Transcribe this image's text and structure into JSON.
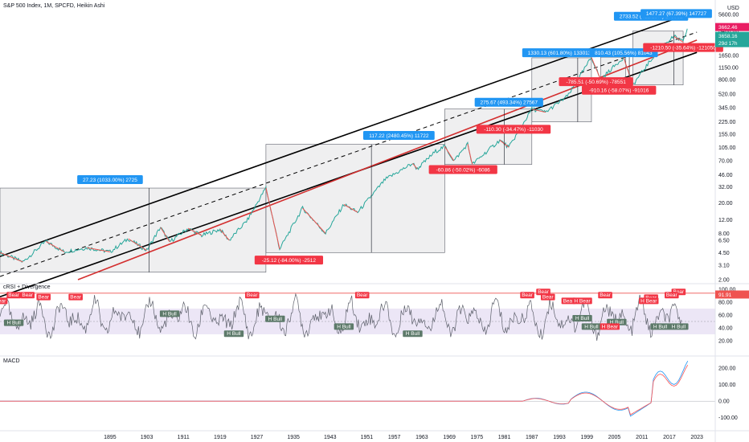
{
  "header": {
    "title": "S&P 500 Index, 1M, SPCFD, Heikin Ashi",
    "currency": "USD"
  },
  "panes": {
    "rsi_title": "cRSI + Divergence",
    "macd_title": "MACD"
  },
  "price_badges": [
    {
      "text": "3662.46",
      "color": "#e91e63"
    },
    {
      "text": "3658.16",
      "color": "#26a69a"
    },
    {
      "text": "29d 17h",
      "color": "#26a69a"
    }
  ],
  "rsi_badge": {
    "text": "91.91",
    "color": "#ef5350"
  },
  "chart_data": {
    "type": "line",
    "price_axis": {
      "scale": "log",
      "ticks": [
        "5600.00",
        "3460.00",
        "2650.00",
        "1650.00",
        "1150.00",
        "800.00",
        "520.00",
        "345.00",
        "225.00",
        "155.00",
        "105.00",
        "70.00",
        "46.00",
        "32.00",
        "20.00",
        "12.00",
        "8.00",
        "6.50",
        "4.50",
        "3.10",
        "2.00"
      ]
    },
    "x_axis": {
      "ticks": [
        "1895",
        "1903",
        "1911",
        "1919",
        "1927",
        "1935",
        "1943",
        "1951",
        "1957",
        "1963",
        "1969",
        "1975",
        "1981",
        "1987",
        "1993",
        "1999",
        "2005",
        "2011",
        "2017",
        "2023"
      ]
    },
    "rsi_axis": {
      "ticks": [
        "100.00",
        "80.00",
        "60.00",
        "40.00",
        "20.00"
      ],
      "range": [
        0,
        100
      ]
    },
    "macd_axis": {
      "ticks": [
        "200.00",
        "100.00",
        "0.00",
        "-100.00"
      ],
      "range": [
        -150,
        230
      ]
    },
    "price_series": [
      [
        1871,
        4.5
      ],
      [
        1876,
        3.4
      ],
      [
        1881,
        6.3
      ],
      [
        1885,
        4.6
      ],
      [
        1890,
        5.2
      ],
      [
        1895,
        4.6
      ],
      [
        1899,
        6.8
      ],
      [
        1903,
        4.8
      ],
      [
        1906,
        9.6
      ],
      [
        1908,
        6.2
      ],
      [
        1912,
        9.3
      ],
      [
        1915,
        7.5
      ],
      [
        1919,
        9.0
      ],
      [
        1921,
        6.5
      ],
      [
        1925,
        12.0
      ],
      [
        1929,
        31.3
      ],
      [
        1932,
        5.0
      ],
      [
        1937,
        17.0
      ],
      [
        1942,
        8.0
      ],
      [
        1946,
        19.0
      ],
      [
        1949,
        15.0
      ],
      [
        1955,
        40.0
      ],
      [
        1961,
        65.0
      ],
      [
        1962,
        55.0
      ],
      [
        1966,
        93.0
      ],
      [
        1968,
        108.0
      ],
      [
        1970,
        70.0
      ],
      [
        1973,
        116.0
      ],
      [
        1974,
        63.0
      ],
      [
        1980,
        130.0
      ],
      [
        1982,
        105.0
      ],
      [
        1987,
        330.0
      ],
      [
        1990,
        300.0
      ],
      [
        1995,
        500.0
      ],
      [
        2000,
        1550.0
      ],
      [
        2002,
        800.0
      ],
      [
        2007,
        1560.0
      ],
      [
        2009,
        680.0
      ],
      [
        2015,
        2100.0
      ],
      [
        2018,
        2900.0
      ],
      [
        2020,
        2450.0
      ],
      [
        2020.9,
        3662.46
      ]
    ],
    "channel_lines": [
      {
        "name": "",
        "color": "#000000",
        "style": "solid",
        "points": [
          [
            1871,
            4.0
          ],
          [
            2023,
            6200.0
          ]
        ]
      },
      {
        "name": "",
        "color": "#000000",
        "style": "dashed",
        "points": [
          [
            1871,
            2.2
          ],
          [
            2023,
            3300.0
          ]
        ]
      },
      {
        "name": "",
        "color": "#000000",
        "style": "solid",
        "points": [
          [
            1871,
            1.2
          ],
          [
            2023,
            1800.0
          ]
        ]
      },
      {
        "name": "",
        "color": "#d32f2f",
        "style": "solid",
        "points": [
          [
            1888,
            2.0
          ],
          [
            2023,
            2600.0
          ]
        ]
      }
    ],
    "range_boxes": [
      {
        "x0": 1871,
        "x1": 1929,
        "low": 2.5,
        "high": 31.0
      },
      {
        "x0": 1929,
        "x1": 1968,
        "low": 4.5,
        "high": 115.0
      },
      {
        "x0": 1968,
        "x1": 1987,
        "low": 63.0,
        "high": 330.0
      },
      {
        "x0": 1987,
        "x1": 2000,
        "low": 225.0,
        "high": 1530.0
      },
      {
        "x0": 2002,
        "x1": 2007.5,
        "low": 800.0,
        "high": 1560.0
      },
      {
        "x0": 2009,
        "x1": 2020,
        "low": 680.0,
        "high": 3400.0
      }
    ],
    "gain_labels": [
      {
        "text": "27.23 (1033.00%) 2725",
        "x": 1895,
        "price": 40
      },
      {
        "text": "117.22 (2480.45%) 11722",
        "x": 1958,
        "price": 150
      },
      {
        "text": "275.67 (493.34%) 27567",
        "x": 1982,
        "price": 405
      },
      {
        "text": "1330.13 (601.80%) 133013",
        "x": 1993,
        "price": 1780
      },
      {
        "text": "810.43 (105.56%) 81043",
        "x": 2007,
        "price": 1780
      },
      {
        "text": "2733.52 (412.13%) 273352",
        "x": 2013,
        "price": 5300
      },
      {
        "text": "1477.27 (67.39%) 147727",
        "x": 2018.5,
        "price": 5750
      }
    ],
    "loss_labels": [
      {
        "text": "-25.12 (-84.00%) -2512",
        "x": 1934,
        "price": 3.6
      },
      {
        "text": "-60.86 (-50.02%) -6086",
        "x": 1972,
        "price": 54
      },
      {
        "text": "-110.30 (-34.47%) -11030",
        "x": 1983,
        "price": 180
      },
      {
        "text": "-785.51 (-50.69%) -78551",
        "x": 2001,
        "price": 750
      },
      {
        "text": "-910.16 (-58.07%) -91016",
        "x": 2006,
        "price": 580
      },
      {
        "text": "-1210.50 (-35.64%) -121050",
        "x": 2020,
        "price": 2080
      }
    ],
    "rsi_signals": [
      {
        "text": "H Bear",
        "x": 1870.5,
        "value": 82,
        "kind": "bear"
      },
      {
        "text": "Bear",
        "x": 1874,
        "value": 91,
        "kind": "bear"
      },
      {
        "text": "Bear",
        "x": 1877,
        "value": 91,
        "kind": "bear"
      },
      {
        "text": "Bear",
        "x": 1880.5,
        "value": 88,
        "kind": "bear"
      },
      {
        "text": "Bear",
        "x": 1887.5,
        "value": 88,
        "kind": "bear"
      },
      {
        "text": "H Bull",
        "x": 1874,
        "value": 48,
        "kind": "bull"
      },
      {
        "text": "H Bull",
        "x": 1908,
        "value": 62,
        "kind": "bull"
      },
      {
        "text": "H Bull",
        "x": 1922,
        "value": 31,
        "kind": "bull"
      },
      {
        "text": "H Bull",
        "x": 1931,
        "value": 54,
        "kind": "bull"
      },
      {
        "text": "H Bull",
        "x": 1946,
        "value": 42,
        "kind": "bull"
      },
      {
        "text": "H Bull",
        "x": 1961,
        "value": 31,
        "kind": "bull"
      },
      {
        "text": "Bear",
        "x": 1926,
        "value": 91,
        "kind": "bear"
      },
      {
        "text": "Bear",
        "x": 1950,
        "value": 91,
        "kind": "bear"
      },
      {
        "text": "Bear",
        "x": 1989.5,
        "value": 96,
        "kind": "bear"
      },
      {
        "text": "Bear",
        "x": 1986,
        "value": 91,
        "kind": "bear"
      },
      {
        "text": "Bear",
        "x": 1990.5,
        "value": 88,
        "kind": "bear"
      },
      {
        "text": "Bear",
        "x": 1995,
        "value": 82,
        "kind": "bear"
      },
      {
        "text": "H Bear",
        "x": 1998,
        "value": 82,
        "kind": "bear"
      },
      {
        "text": "Bear",
        "x": 2003,
        "value": 91,
        "kind": "bear"
      },
      {
        "text": "Bear",
        "x": 2013,
        "value": 87,
        "kind": "bear"
      },
      {
        "text": "H Bear",
        "x": 2012.5,
        "value": 82,
        "kind": "bear"
      },
      {
        "text": "Bear",
        "x": 2019,
        "value": 96,
        "kind": "bear"
      },
      {
        "text": "Bear",
        "x": 2017.5,
        "value": 91,
        "kind": "bear"
      },
      {
        "text": "H Bull",
        "x": 1998,
        "value": 55,
        "kind": "bull"
      },
      {
        "text": "H Bull",
        "x": 2000,
        "value": 42,
        "kind": "bull"
      },
      {
        "text": "H Bull",
        "x": 2005.5,
        "value": 49,
        "kind": "bull"
      },
      {
        "text": "H Bear",
        "x": 2004,
        "value": 42,
        "kind": "bear"
      },
      {
        "text": "H Bull",
        "x": 2015,
        "value": 42,
        "kind": "bull"
      },
      {
        "text": "H Bull",
        "x": 2019,
        "value": 42,
        "kind": "bull"
      }
    ]
  }
}
